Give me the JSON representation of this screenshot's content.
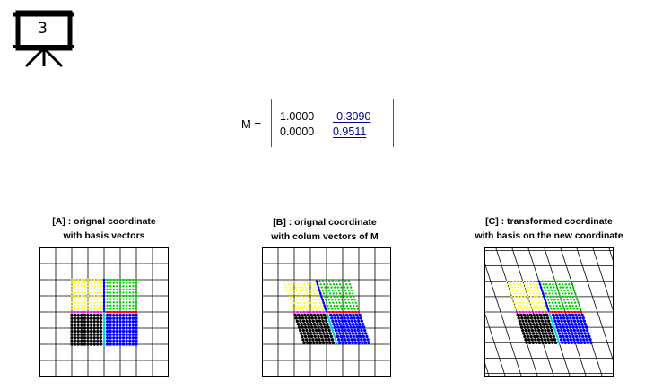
{
  "slide": {
    "number": "3"
  },
  "matrix": {
    "label": "M =",
    "rows": [
      [
        "1.0000",
        "-0.3090"
      ],
      [
        "0.0000",
        "0.9511"
      ]
    ],
    "values": [
      [
        1.0,
        -0.309
      ],
      [
        0.0,
        0.9511
      ]
    ]
  },
  "panels": [
    {
      "title_line1": "[A] : orignal coordinate",
      "title_line2": "with basis vectors",
      "transform": false,
      "skew_grid": false
    },
    {
      "title_line1": "[B] : orignal coordinate",
      "title_line2": "with colum vectors of M",
      "transform": true,
      "skew_grid": false
    },
    {
      "title_line1": "[C] : transformed coordinate",
      "title_line2": "with basis on the new coordinate",
      "transform": true,
      "skew_grid": true
    }
  ],
  "colors": {
    "yellow": "#ffff00",
    "green": "#00d000",
    "black": "#000000",
    "blue": "#0000ff",
    "magenta": "#ff00ff",
    "red": "#ff0000",
    "cyan": "#00d0d0",
    "link": "#00008b"
  }
}
